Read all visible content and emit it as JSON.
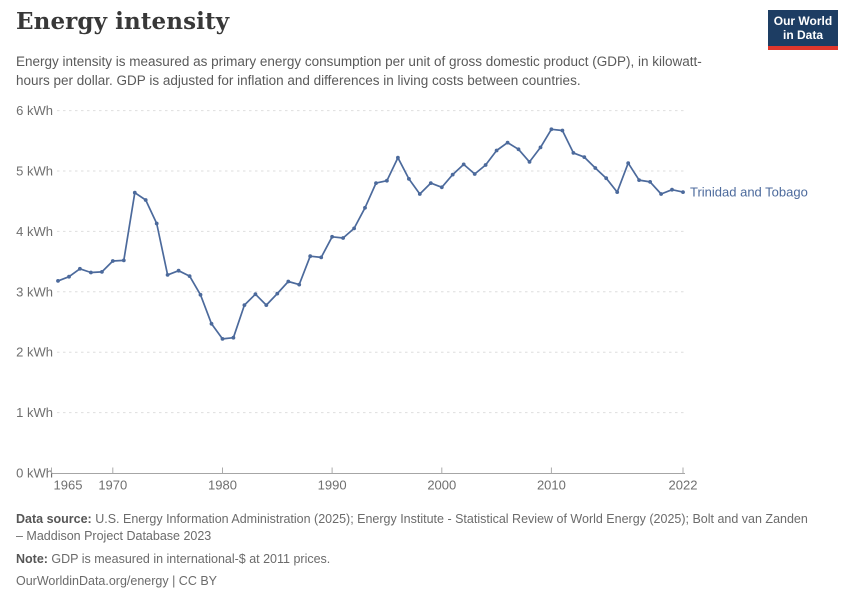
{
  "header": {
    "title": "Energy intensity",
    "subtitle": "Energy intensity is measured as primary energy consumption per unit of gross domestic product (GDP), in kilowatt-hours per dollar. GDP is adjusted for inflation and differences in living costs between countries.",
    "logo": {
      "line1": "Our World",
      "line2": "in Data"
    }
  },
  "chart_data": {
    "type": "line",
    "title": "Energy intensity",
    "entity": "Trinidad and Tobago",
    "unit": "kWh",
    "line_color": "#4c6a9c",
    "grid": "horizontal-dashed",
    "legend_position": "end-of-line-label",
    "ylim": [
      0,
      6
    ],
    "yticks": [
      0,
      1,
      2,
      3,
      4,
      5,
      6
    ],
    "ytick_labels": [
      "0 kWh",
      "1 kWh",
      "2 kWh",
      "3 kWh",
      "4 kWh",
      "5 kWh",
      "6 kWh"
    ],
    "xticks": [
      1965,
      1970,
      1980,
      1990,
      2000,
      2010,
      2022
    ],
    "xtick_labels": [
      "1965",
      "1970",
      "1980",
      "1990",
      "2000",
      "2010",
      "2022"
    ],
    "x": [
      1965,
      1966,
      1967,
      1968,
      1969,
      1970,
      1971,
      1972,
      1973,
      1974,
      1975,
      1976,
      1977,
      1978,
      1979,
      1980,
      1981,
      1982,
      1983,
      1984,
      1985,
      1986,
      1987,
      1988,
      1989,
      1990,
      1991,
      1992,
      1993,
      1994,
      1995,
      1996,
      1997,
      1998,
      1999,
      2000,
      2001,
      2002,
      2003,
      2004,
      2005,
      2006,
      2007,
      2008,
      2009,
      2010,
      2011,
      2012,
      2013,
      2014,
      2015,
      2016,
      2017,
      2018,
      2019,
      2020,
      2021,
      2022
    ],
    "values": [
      3.18,
      3.25,
      3.38,
      3.32,
      3.33,
      3.51,
      3.52,
      4.64,
      4.52,
      4.13,
      3.28,
      3.35,
      3.26,
      2.95,
      2.47,
      2.22,
      2.24,
      2.78,
      2.96,
      2.78,
      2.97,
      3.17,
      3.12,
      3.59,
      3.57,
      3.91,
      3.89,
      4.05,
      4.39,
      4.8,
      4.84,
      5.22,
      4.87,
      4.62,
      4.8,
      4.73,
      4.94,
      5.11,
      4.95,
      5.1,
      5.34,
      5.47,
      5.36,
      5.15,
      5.39,
      5.69,
      5.67,
      5.3,
      5.23,
      5.05,
      4.88,
      4.65,
      5.13,
      4.85,
      4.82,
      4.62,
      4.69,
      4.65
    ]
  },
  "footer": {
    "datasource_label": "Data source:",
    "datasource_text": " U.S. Energy Information Administration (2025); Energy Institute - Statistical Review of World Energy (2025); Bolt and van Zanden – Maddison Project Database 2023",
    "note_label": "Note:",
    "note_text": " GDP is measured in international-$ at 2011 prices.",
    "link_text": "OurWorldinData.org/energy | CC BY"
  }
}
